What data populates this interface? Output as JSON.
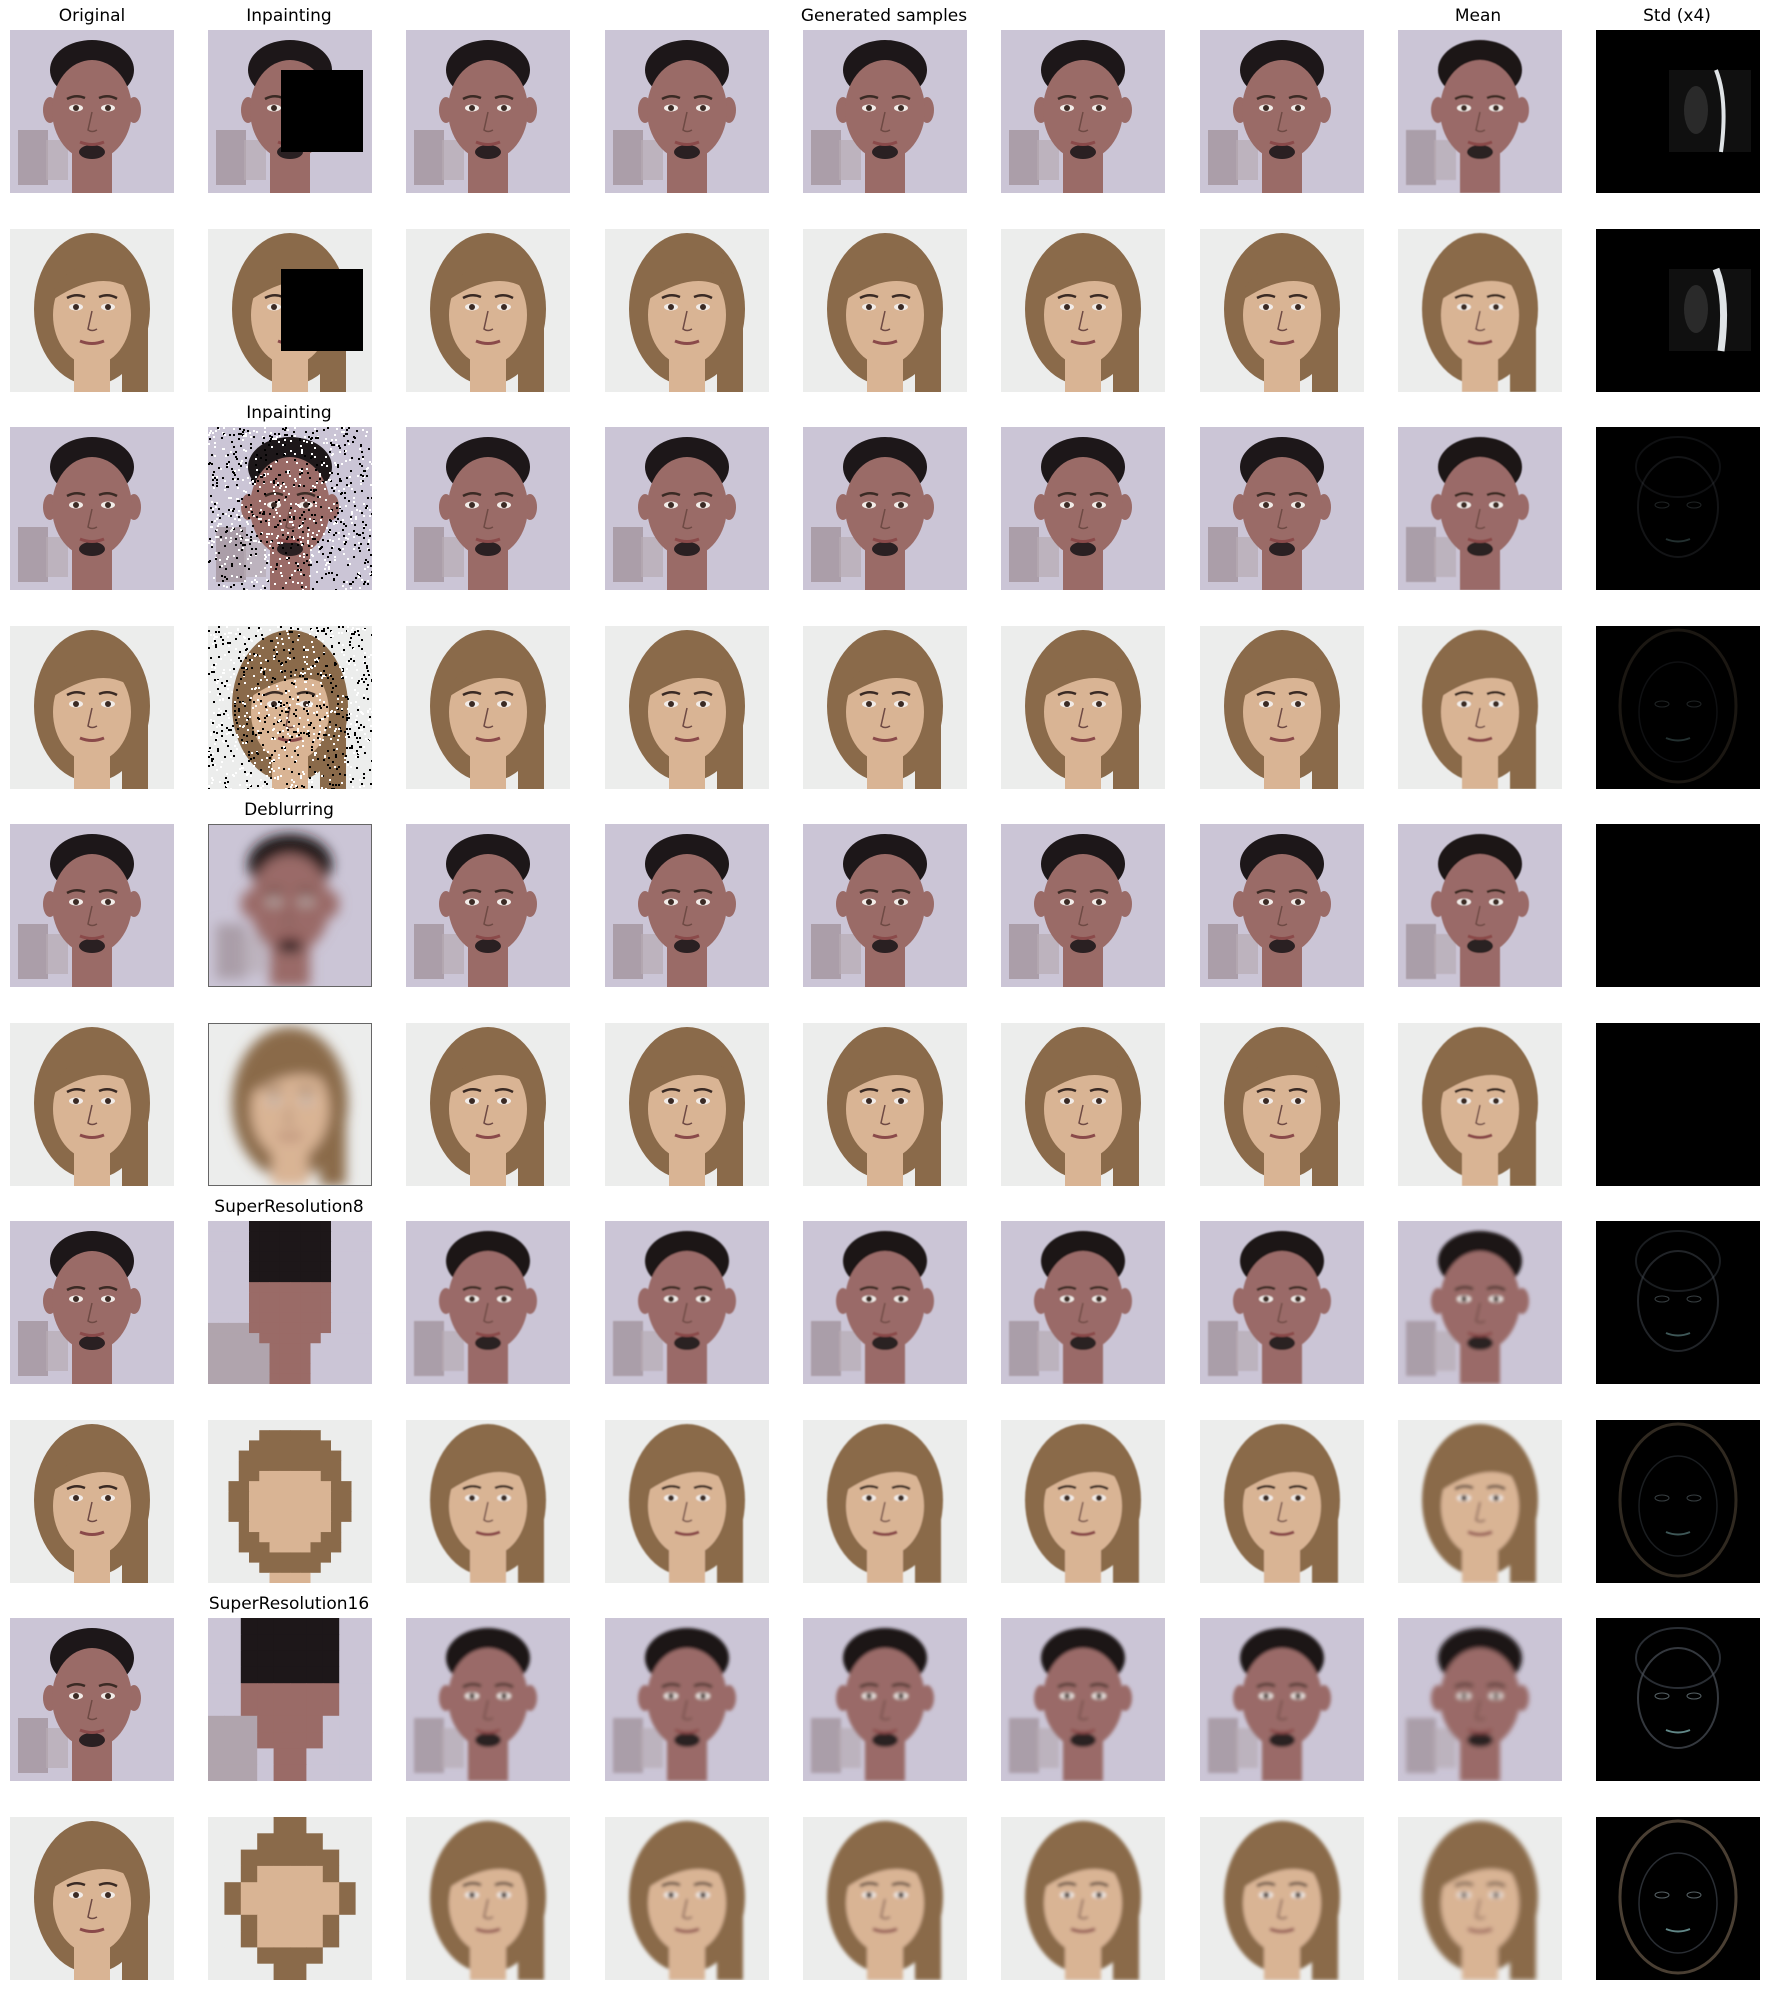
{
  "figure": {
    "column_titles": [
      "Original",
      "Inpainting",
      "Generated samples",
      "Mean",
      "Std (x4)"
    ],
    "task_labels": [
      "Inpainting",
      "Deblurring",
      "SuperResolution8",
      "SuperResolution16"
    ]
  },
  "rows": [
    {
      "subject": "man",
      "task": "box-inpainting"
    },
    {
      "subject": "woman",
      "task": "box-inpainting"
    },
    {
      "subject": "man",
      "task": "noise-inpainting"
    },
    {
      "subject": "woman",
      "task": "noise-inpainting"
    },
    {
      "subject": "man",
      "task": "deblurring"
    },
    {
      "subject": "woman",
      "task": "deblurring"
    },
    {
      "subject": "man",
      "task": "superresolution8"
    },
    {
      "subject": "woman",
      "task": "superresolution8"
    },
    {
      "subject": "man",
      "task": "superresolution16"
    },
    {
      "subject": "woman",
      "task": "superresolution16"
    }
  ],
  "colors": {
    "man_bg": "#cbc5d6",
    "woman_bg": "#ecedec",
    "man_skin": "#9a6b67",
    "woman_skin": "#d9b494",
    "man_hair": "#1d1719",
    "woman_hair": "#8a6a4a",
    "std_bg": "#000000"
  }
}
